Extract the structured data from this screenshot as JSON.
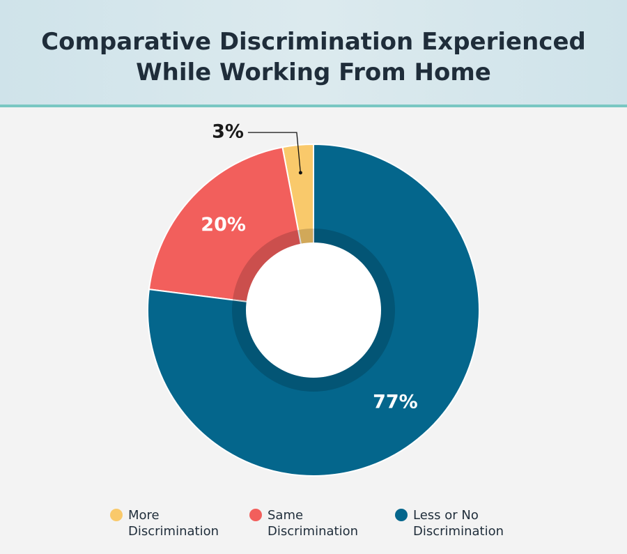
{
  "chart_data": {
    "type": "donut",
    "title": "Comparative Discrimination Experienced While Working From Home",
    "categories": [
      "More Discrimination",
      "Same Discrimination",
      "Less or No Discrimination"
    ],
    "values": [
      3,
      20,
      77
    ],
    "value_labels": [
      "3%",
      "20%",
      "77%"
    ],
    "colors": [
      "#f9c96b",
      "#f25f5c",
      "#04668c"
    ]
  }
}
